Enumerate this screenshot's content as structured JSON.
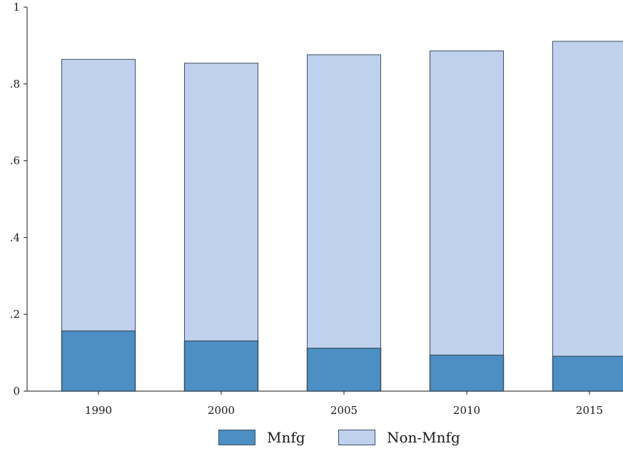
{
  "chart_data": {
    "type": "bar",
    "stacked": true,
    "categories": [
      "1990",
      "2000",
      "2005",
      "2010",
      "2015"
    ],
    "series": [
      {
        "name": "Mnfg",
        "values": [
          0.157,
          0.131,
          0.112,
          0.094,
          0.091
        ],
        "color": "#4b8fc4"
      },
      {
        "name": "Non-Mnfg",
        "values": [
          0.707,
          0.723,
          0.764,
          0.792,
          0.82
        ],
        "color": "#bfd1ec"
      }
    ],
    "ylim": [
      0,
      1
    ],
    "yticks": [
      "0",
      ".2",
      ".4",
      ".6",
      ".8",
      "1"
    ],
    "ytick_values": [
      0,
      0.2,
      0.4,
      0.6,
      0.8,
      1
    ],
    "title": "",
    "xlabel": "",
    "ylabel": "",
    "grid": false,
    "legend_position": "bottom",
    "outline_color": "#3c4f63"
  }
}
